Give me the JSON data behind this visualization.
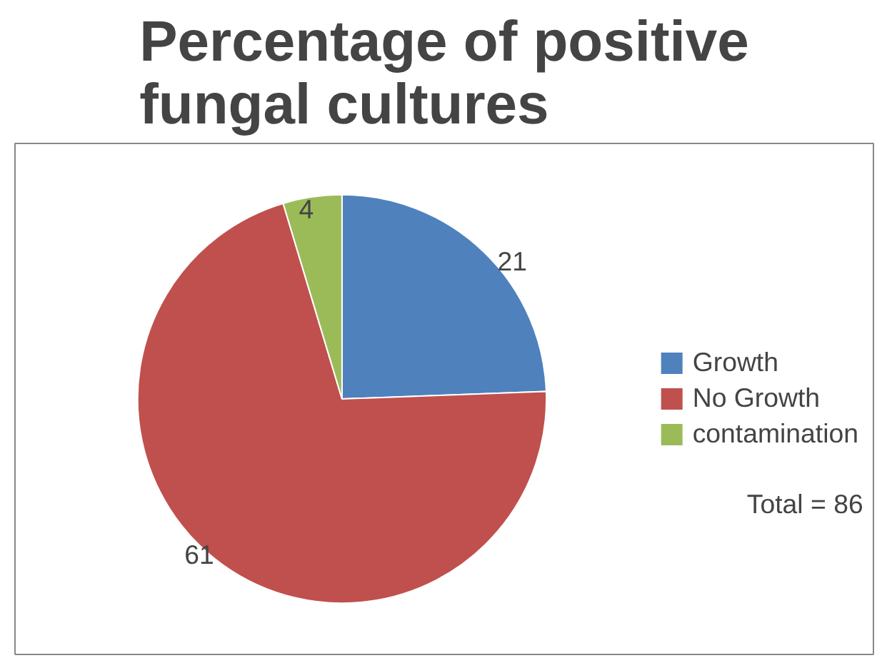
{
  "chart_data": {
    "type": "pie",
    "title": "Percentage of positive fungal cultures",
    "categories": [
      "Growth",
      "No Growth",
      "contamination"
    ],
    "values": [
      21,
      61,
      4
    ],
    "colors": [
      "#4f81bd",
      "#c0504d",
      "#9bbb59"
    ],
    "data_labels": true,
    "legend": "right",
    "annotations": [
      "Total = 86"
    ]
  }
}
